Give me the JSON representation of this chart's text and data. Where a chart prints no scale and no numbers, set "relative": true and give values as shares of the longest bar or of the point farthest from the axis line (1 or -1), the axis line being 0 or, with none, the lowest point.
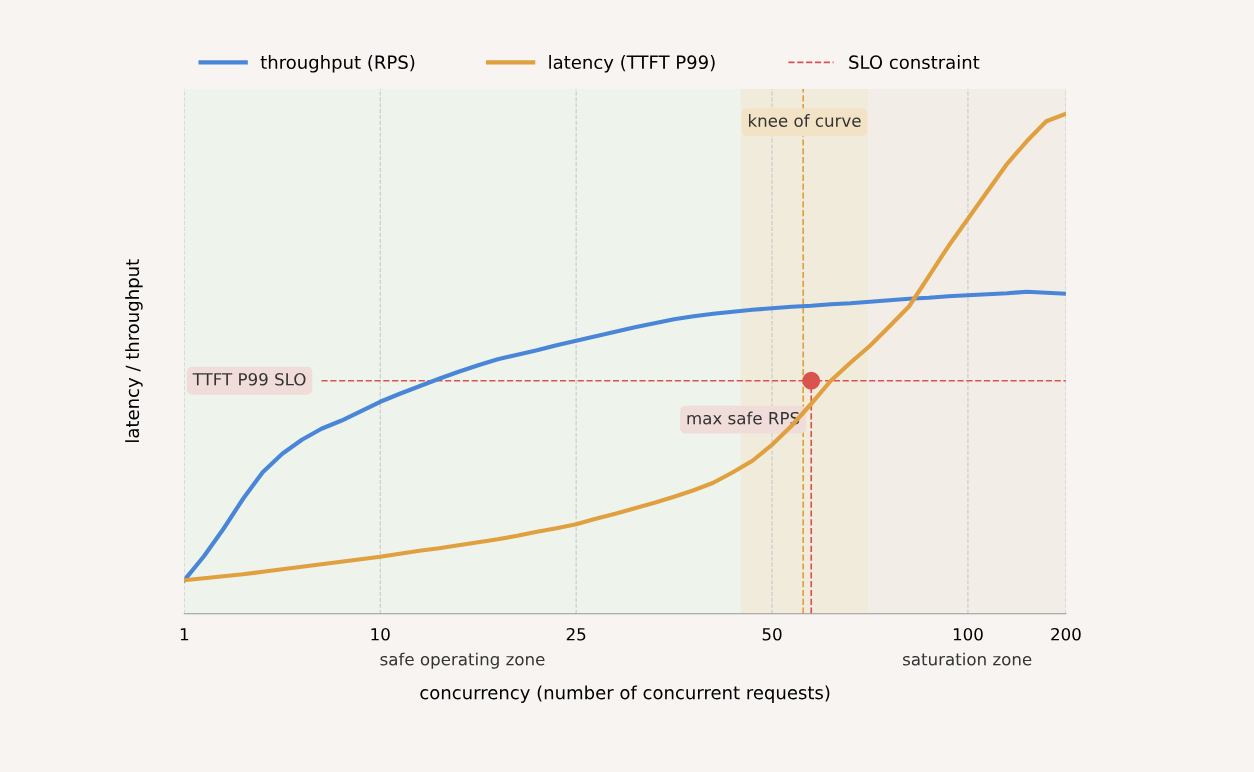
{
  "chart_data": {
    "type": "line",
    "xlabel": "concurrency (number of concurrent requests)",
    "ylabel": "latency / throughput",
    "relative": true,
    "categories": [
      "1",
      null,
      null,
      null,
      null,
      null,
      null,
      null,
      null,
      null,
      "10",
      null,
      null,
      null,
      null,
      null,
      null,
      null,
      null,
      null,
      "25",
      null,
      null,
      null,
      null,
      null,
      null,
      null,
      null,
      null,
      "50",
      null,
      null,
      null,
      null,
      null,
      null,
      null,
      null,
      null,
      "100",
      null,
      null,
      null,
      null,
      "200"
    ],
    "series": [
      {
        "name": "throughput (RPS)",
        "color": "#4a86d8",
        "values": [
          0.067,
          0.115,
          0.17,
          0.23,
          0.283,
          0.32,
          0.348,
          0.37,
          0.386,
          0.405,
          0.424,
          0.44,
          0.455,
          0.47,
          0.484,
          0.497,
          0.509,
          0.518,
          0.527,
          0.537,
          0.546,
          0.555,
          0.564,
          0.573,
          0.581,
          0.589,
          0.595,
          0.6,
          0.604,
          0.608,
          0.611,
          0.614,
          0.616,
          0.619,
          0.621,
          0.624,
          0.627,
          0.63,
          0.632,
          0.635,
          0.637,
          0.639,
          0.641,
          0.644,
          0.642,
          0.64
        ]
      },
      {
        "name": "latency (TTFT P99)",
        "color": "#e0a040",
        "values": [
          0.067,
          0.071,
          0.075,
          0.079,
          0.084,
          0.089,
          0.094,
          0.099,
          0.104,
          0.109,
          0.114,
          0.12,
          0.126,
          0.131,
          0.137,
          0.143,
          0.149,
          0.156,
          0.164,
          0.171,
          0.179,
          0.19,
          0.2,
          0.211,
          0.222,
          0.234,
          0.247,
          0.262,
          0.283,
          0.306,
          0.338,
          0.376,
          0.42,
          0.466,
          0.502,
          0.536,
          0.575,
          0.615,
          0.675,
          0.735,
          0.79,
          0.845,
          0.9,
          0.945,
          0.985,
          1.0
        ]
      },
      {
        "name": "SLO constraint",
        "color": "#d9534f",
        "line_style": "dashed",
        "values": [
          null,
          null,
          null,
          null,
          null,
          null,
          null,
          0.466,
          0.466,
          0.466,
          0.466,
          0.466,
          0.466,
          0.466,
          0.466,
          0.466,
          0.466,
          0.466,
          0.466,
          0.466,
          0.466,
          0.466,
          0.466,
          0.466,
          0.466,
          0.466,
          0.466,
          0.466,
          0.466,
          0.466,
          0.466,
          0.466,
          0.466,
          0.466,
          0.466,
          0.466,
          0.466,
          0.466,
          0.466,
          0.466,
          0.466,
          0.466,
          0.466,
          0.466,
          0.466,
          0.466
        ]
      },
      {
        "type": "scatter",
        "color": "#d9534f",
        "values": [
          null,
          null,
          null,
          null,
          null,
          null,
          null,
          null,
          null,
          null,
          null,
          null,
          null,
          null,
          null,
          null,
          null,
          null,
          null,
          null,
          null,
          null,
          null,
          null,
          null,
          null,
          null,
          null,
          null,
          null,
          null,
          null,
          0.466,
          null,
          null,
          null,
          null,
          null,
          null,
          null,
          null,
          null,
          null,
          null,
          null,
          null
        ]
      }
    ],
    "annotations": [
      "TTFT P99 SLO",
      "max safe RPS",
      "safe operating zone",
      "knee of curve",
      "saturation zone"
    ],
    "grid": "x",
    "legend": "top",
    "line_style": "solid"
  }
}
